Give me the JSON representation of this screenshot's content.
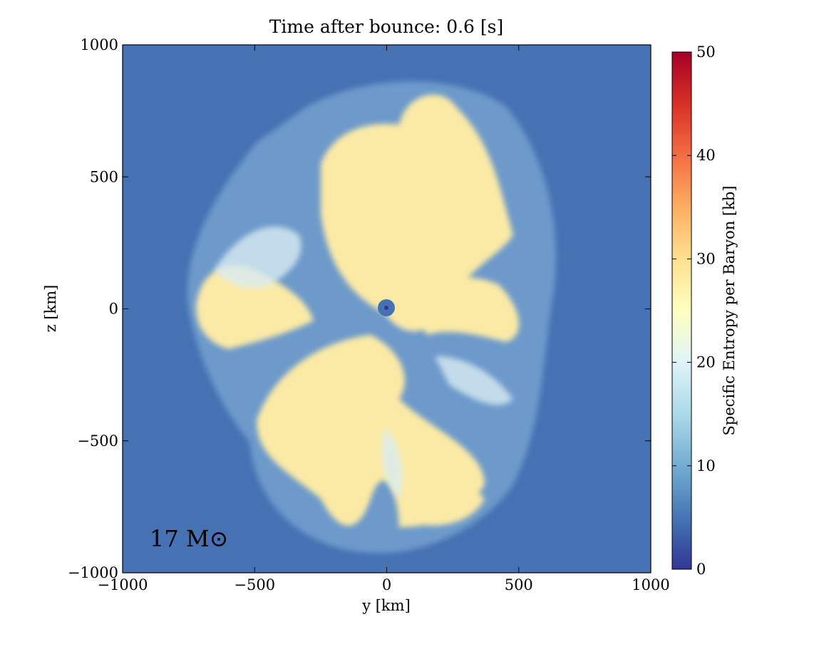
{
  "chart_data": {
    "type": "heatmap",
    "title": "Time after bounce: 0.6 [s]",
    "x_label": "y [km]",
    "y_label": "z [km]",
    "annotation": "17 M⊙",
    "xlim": [
      -1000,
      1000
    ],
    "ylim": [
      -1000,
      1000
    ],
    "xticks": [
      {
        "value": -1000,
        "label": "−1000"
      },
      {
        "value": -500,
        "label": "−500"
      },
      0,
      500,
      1000
    ],
    "yticks": [
      {
        "value": -1000,
        "label": "−1000"
      },
      {
        "value": -500,
        "label": "−500"
      },
      0,
      500,
      1000
    ],
    "colorbar": {
      "label": "Specific Entropy per Baryon [kb]",
      "lim": [
        0,
        50
      ],
      "ticks": [
        0,
        10,
        20,
        30,
        40,
        50
      ],
      "colormap": [
        "#313695",
        "#4575b4",
        "#74add1",
        "#abd9e9",
        "#e0f3f8",
        "#ffffbf",
        "#fee090",
        "#fdae61",
        "#f46d43",
        "#d73027",
        "#a50026"
      ]
    }
  }
}
